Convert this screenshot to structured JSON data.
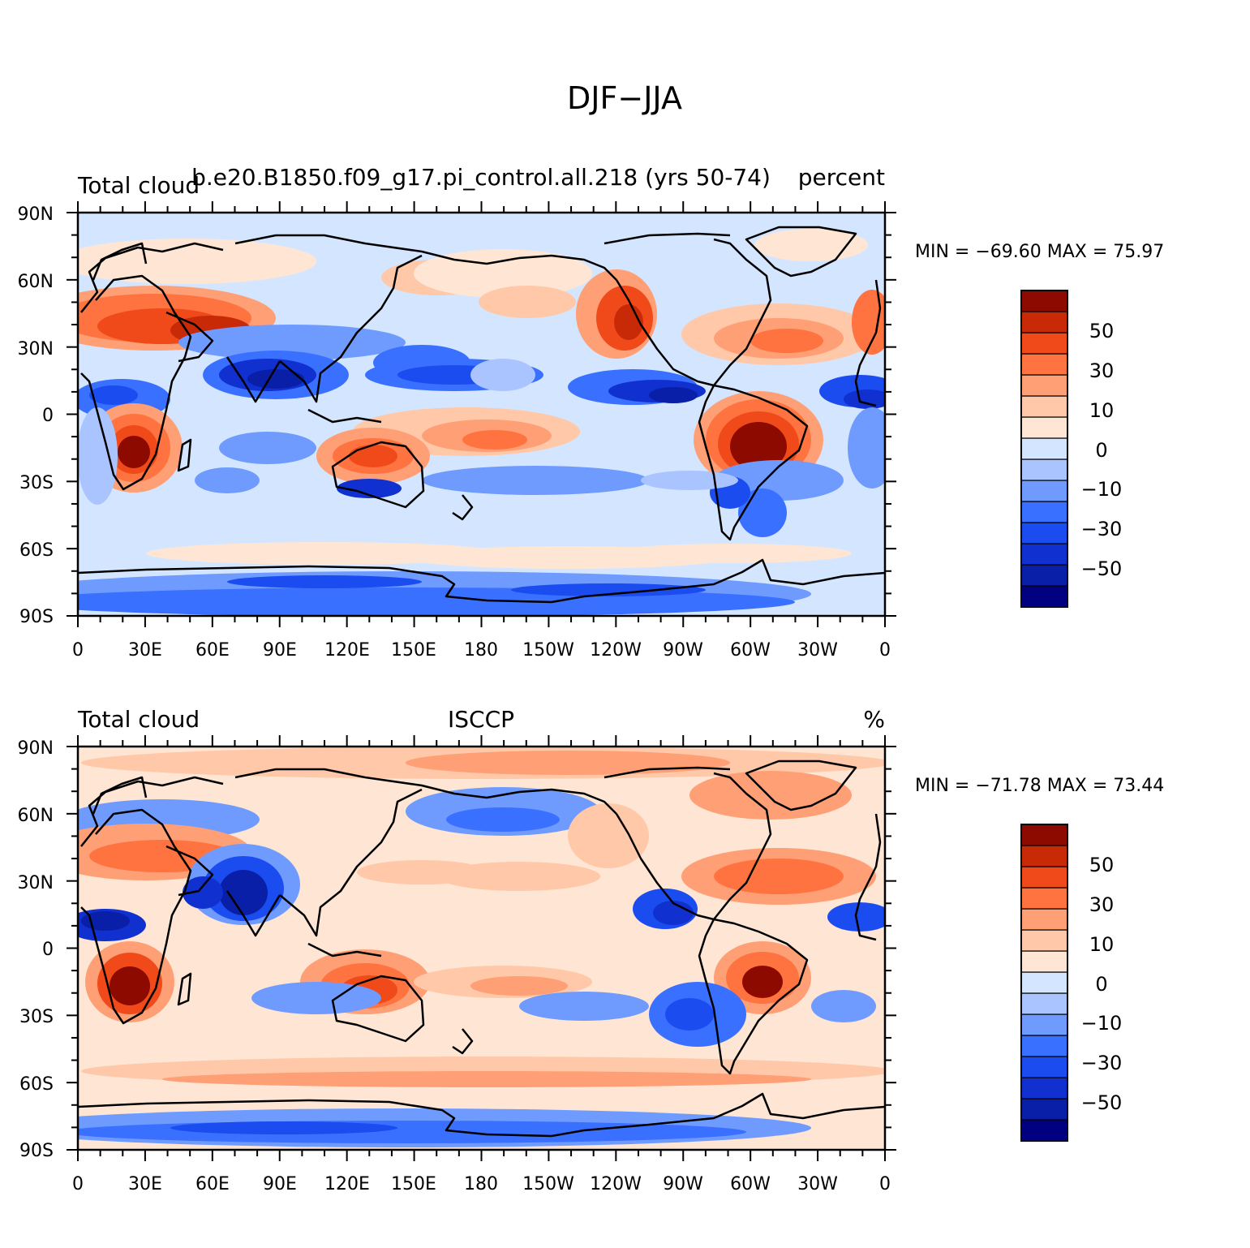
{
  "main_title": "DJF−JJA",
  "colormap": {
    "colors": [
      "#000080",
      "#0a1fa8",
      "#1030d0",
      "#1a4cf0",
      "#3a70ff",
      "#6f9bff",
      "#a9c4ff",
      "#d4e6ff",
      "#ffe6d4",
      "#ffc8a8",
      "#ff9f75",
      "#ff7340",
      "#f04a1a",
      "#c82a08",
      "#8c0a00"
    ],
    "labels": [
      "−50",
      "−30",
      "−10",
      "0",
      "10",
      "30",
      "50"
    ]
  },
  "panels": [
    {
      "id": "model",
      "left_label": "Total cloud",
      "center_label": "b.e20.B1850.f09_g17.pi_control.all.218 (yrs 50-74)",
      "right_label": "percent",
      "min_max": "MIN = −69.60  MAX =   75.97",
      "lat_labels": [
        "90N",
        "60N",
        "30N",
        "0",
        "30S",
        "60S",
        "90S"
      ],
      "lon_labels": [
        "0",
        "30E",
        "60E",
        "90E",
        "120E",
        "150E",
        "180",
        "150W",
        "120W",
        "90W",
        "60W",
        "30W",
        "0"
      ]
    },
    {
      "id": "obs",
      "left_label": "Total cloud",
      "center_label": "ISCCP",
      "right_label": "%",
      "min_max": "MIN = −71.78  MAX =   73.44",
      "lat_labels": [
        "90N",
        "60N",
        "30N",
        "0",
        "30S",
        "60S",
        "90S"
      ],
      "lon_labels": [
        "0",
        "30E",
        "60E",
        "90E",
        "120E",
        "150E",
        "180",
        "150W",
        "120W",
        "90W",
        "60W",
        "30W",
        "0"
      ]
    }
  ]
}
